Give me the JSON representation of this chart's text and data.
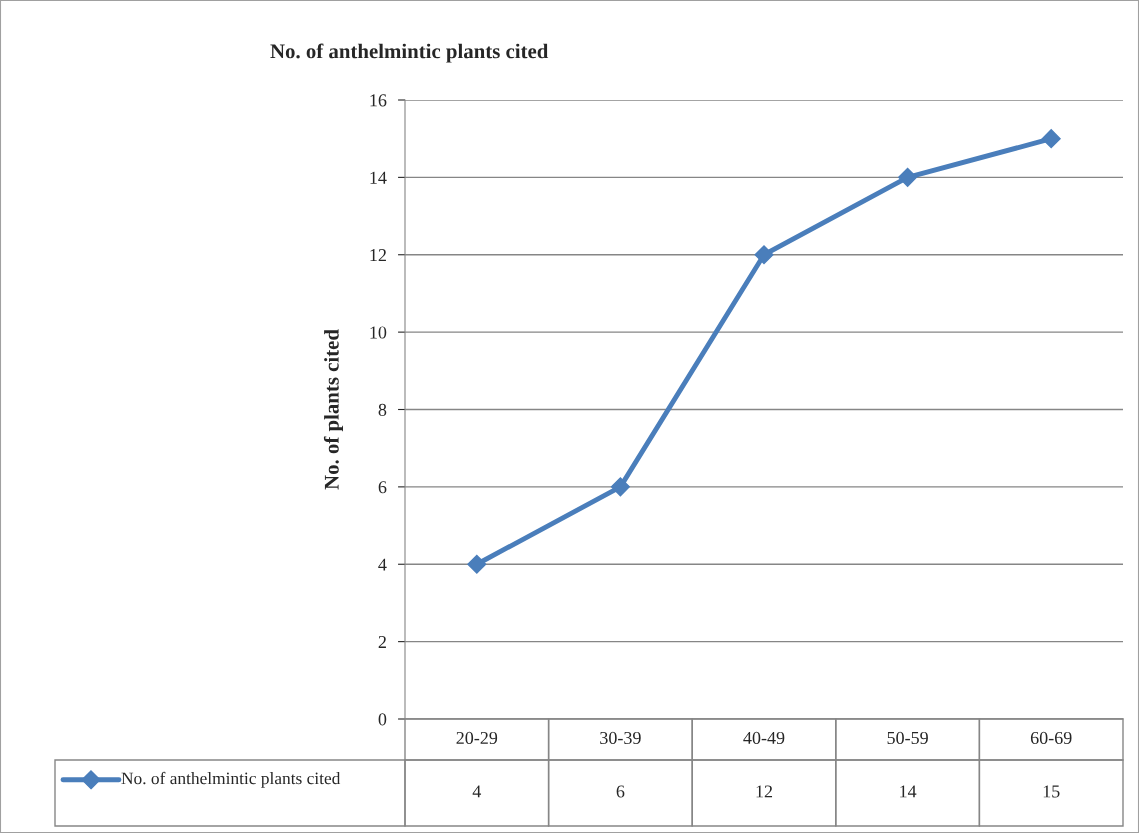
{
  "chart_data": {
    "type": "line",
    "title": "No. of anthelmintic plants cited",
    "ylabel": "No. of plants cited",
    "categories": [
      "20-29",
      "30-39",
      "40-49",
      "50-59",
      "60-69"
    ],
    "series": [
      {
        "name": "No. of anthelmintic plants cited",
        "color": "#4a7ebb",
        "values": [
          4,
          6,
          12,
          14,
          15
        ]
      }
    ],
    "ylim": [
      0,
      16
    ],
    "yticks": [
      0,
      2,
      4,
      6,
      8,
      10,
      12,
      14,
      16
    ],
    "grid": "y",
    "legend": "bottom",
    "marker": "diamond",
    "line_style": "solid",
    "data_labels": true
  }
}
